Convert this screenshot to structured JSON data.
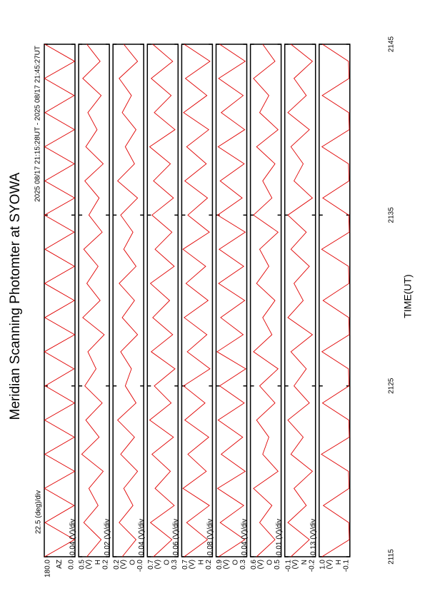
{
  "chart_data": {
    "type": "line",
    "title": "Meridian Scanning Photomter at SYOWA",
    "subtitle": "2025 08/17 21:15:28UT - 2025 08/17 21:45:27UT",
    "x_label": "TIME(UT)",
    "xlim": [
      2115,
      2145
    ],
    "xticks": [
      2115,
      2125,
      2135,
      2145
    ],
    "x": [
      2115,
      2116,
      2117,
      2118,
      2119,
      2120,
      2121,
      2122,
      2123,
      2124,
      2125,
      2126,
      2127,
      2128,
      2129,
      2130,
      2131,
      2132,
      2133,
      2134,
      2135,
      2136,
      2137,
      2138,
      2139,
      2140,
      2141,
      2142,
      2143,
      2144,
      2145
    ],
    "series": [
      {
        "name": "AZ",
        "scale": "22.5 (deg)/div",
        "color": "#e00000",
        "ylim": [
          0,
          180
        ],
        "yticks": [
          {
            "value": 0,
            "label": "0.0"
          },
          {
            "value": 180,
            "label": "180.0"
          }
        ],
        "values": [
          178,
          3,
          176,
          5,
          179,
          2,
          177,
          4,
          178,
          3,
          175,
          6,
          179,
          2,
          177,
          4,
          178,
          3,
          176,
          5,
          179,
          2,
          177,
          4,
          178,
          3,
          176,
          5,
          179,
          2,
          177
        ]
      },
      {
        "name": "H",
        "unit": "(V)",
        "scale": "0.04 (V)/div",
        "color": "#e00000",
        "ylim": [
          0.2,
          0.5
        ],
        "yticks": [
          0.2,
          0.5
        ],
        "values": [
          0.42,
          0.28,
          0.45,
          0.31,
          0.4,
          0.26,
          0.47,
          0.3,
          0.43,
          0.27,
          0.44,
          0.33,
          0.41,
          0.25,
          0.46,
          0.29,
          0.42,
          0.31,
          0.45,
          0.27,
          0.4,
          0.3,
          0.44,
          0.26,
          0.43,
          0.32,
          0.41,
          0.28,
          0.46,
          0.29,
          0.42
        ]
      },
      {
        "name": "O",
        "unit": "(V)",
        "scale": "0.02 (V)/div",
        "color": "#e00000",
        "ylim": [
          0,
          0.2
        ],
        "yticks": [
          {
            "value": 0,
            "label": "-0.0"
          },
          0.2
        ],
        "values": [
          0.14,
          0.05,
          0.16,
          0.07,
          0.13,
          0.04,
          0.15,
          0.06,
          0.17,
          0.05,
          0.12,
          0.08,
          0.15,
          0.04,
          0.14,
          0.06,
          0.16,
          0.05,
          0.13,
          0.07,
          0.15,
          0.04,
          0.17,
          0.06,
          0.12,
          0.05,
          0.14,
          0.08,
          0.16,
          0.04,
          0.13
        ]
      },
      {
        "name": "O",
        "unit": "(V)",
        "scale": "0.04 (V)/div",
        "color": "#e00000",
        "ylim": [
          0.3,
          0.7
        ],
        "yticks": [
          0.3,
          0.7
        ],
        "values": [
          0.62,
          0.38,
          0.66,
          0.35,
          0.6,
          0.4,
          0.64,
          0.36,
          0.67,
          0.39,
          0.61,
          0.34,
          0.65,
          0.37,
          0.63,
          0.41,
          0.66,
          0.35,
          0.6,
          0.38,
          0.64,
          0.36,
          0.62,
          0.4,
          0.67,
          0.34,
          0.61,
          0.39,
          0.65,
          0.37,
          0.63
        ]
      },
      {
        "name": "H",
        "unit": "(V)",
        "scale": "0.06 (V)/div",
        "color": "#e00000",
        "ylim": [
          0.2,
          0.7
        ],
        "yticks": [
          0.2,
          0.7
        ],
        "values": [
          0.66,
          0.28,
          0.62,
          0.25,
          0.68,
          0.3,
          0.6,
          0.26,
          0.65,
          0.32,
          0.67,
          0.24,
          0.61,
          0.29,
          0.66,
          0.27,
          0.63,
          0.31,
          0.68,
          0.25,
          0.6,
          0.28,
          0.65,
          0.3,
          0.62,
          0.26,
          0.67,
          0.29,
          0.64,
          0.24,
          0.66
        ]
      },
      {
        "name": "O",
        "unit": "(V)",
        "scale": "0.08 (V)/div",
        "color": "#e00000",
        "ylim": [
          0.3,
          0.9
        ],
        "yticks": [
          0.3,
          0.9
        ],
        "values": [
          0.85,
          0.34,
          0.82,
          0.36,
          0.87,
          0.33,
          0.8,
          0.38,
          0.86,
          0.35,
          0.83,
          0.32,
          0.88,
          0.37,
          0.81,
          0.34,
          0.85,
          0.36,
          0.84,
          0.33,
          0.87,
          0.39,
          0.82,
          0.35,
          0.86,
          0.34,
          0.8,
          0.37,
          0.85,
          0.33,
          0.83
        ]
      },
      {
        "name": "O",
        "unit": "(V)",
        "scale": "0.04 (V)/div",
        "color": "#e00000",
        "ylim": [
          0.5,
          0.6
        ],
        "yticks": [
          0.5,
          0.6
        ],
        "values": [
          0.58,
          0.52,
          0.57,
          0.53,
          0.59,
          0.51,
          0.56,
          0.54,
          0.58,
          0.52,
          0.57,
          0.51,
          0.59,
          0.53,
          0.56,
          0.52,
          0.58,
          0.54,
          0.57,
          0.51,
          0.59,
          0.53,
          0.56,
          0.52,
          0.58,
          0.51,
          0.57,
          0.54,
          0.59,
          0.52,
          0.56
        ]
      },
      {
        "name": "N",
        "unit": "(V)",
        "scale": "0.01 (V)/div",
        "color": "#e00000",
        "ylim": [
          -0.2,
          -0.1
        ],
        "yticks": [
          -0.2,
          -0.1
        ],
        "values": [
          -0.12,
          -0.18,
          -0.11,
          -0.17,
          -0.13,
          -0.19,
          -0.12,
          -0.16,
          -0.11,
          -0.18,
          -0.13,
          -0.17,
          -0.12,
          -0.19,
          -0.11,
          -0.16,
          -0.13,
          -0.18,
          -0.12,
          -0.17,
          -0.11,
          -0.19,
          -0.13,
          -0.16,
          -0.12,
          -0.18,
          -0.11,
          -0.17,
          -0.13,
          -0.19,
          -0.12
        ]
      },
      {
        "name": "H",
        "unit": "(V)",
        "scale": "0.13 (V)/div",
        "color": "#e00000",
        "ylim": [
          -0.1,
          1.0
        ],
        "yticks": [
          -0.1,
          {
            "value": 1.0,
            "label": "1.0"
          }
        ],
        "values": [
          0.9,
          -0.08,
          -0.06,
          0.85,
          -0.07,
          -0.05,
          0.92,
          -0.08,
          -0.06,
          0.88,
          -0.07,
          -0.05,
          0.9,
          -0.08,
          -0.06,
          0.86,
          -0.07,
          -0.05,
          0.91,
          -0.08,
          -0.06,
          0.87,
          -0.07,
          -0.05,
          0.9,
          -0.08,
          -0.06,
          0.89,
          -0.07,
          -0.05,
          0.88
        ]
      }
    ]
  }
}
